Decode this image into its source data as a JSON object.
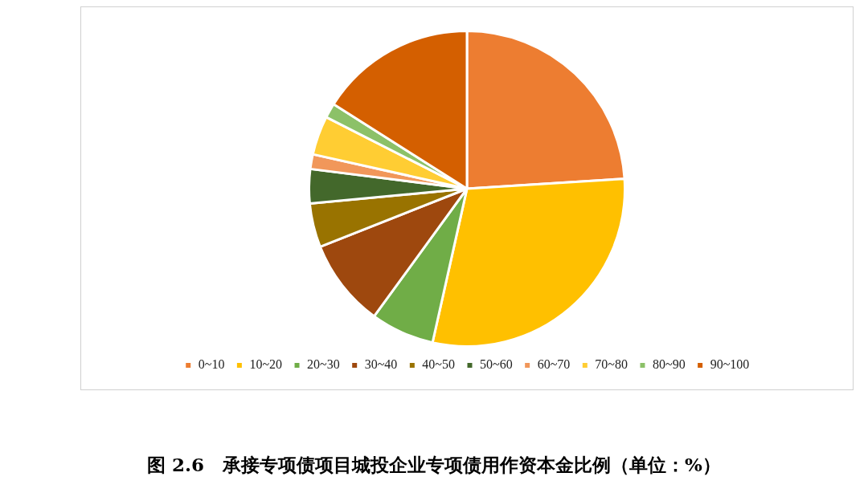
{
  "chart_data": {
    "type": "pie",
    "title": "图 2.6　承接专项债项目城投企业专项债用作资本金比例（单位：%）",
    "categories": [
      "0~10",
      "10~20",
      "20~30",
      "30~40",
      "40~50",
      "50~60",
      "60~70",
      "70~80",
      "80~90",
      "90~100"
    ],
    "values": [
      24,
      29.5,
      6.5,
      9,
      4.5,
      3.5,
      1.5,
      4,
      1.5,
      16
    ],
    "colors": [
      "#ed7d31",
      "#ffc000",
      "#70ad47",
      "#9e480e",
      "#997300",
      "#43682b",
      "#f1975a",
      "#ffcd33",
      "#8cc168",
      "#d45f00"
    ],
    "legend": "bottom"
  }
}
